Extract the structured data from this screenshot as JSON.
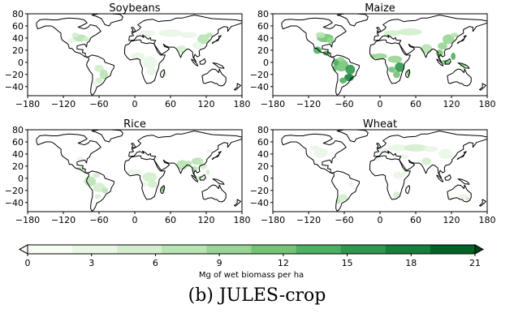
{
  "figure": {
    "caption": "(b) JULES-crop"
  },
  "panels": [
    {
      "title": "Soybeans",
      "crop": "soybeans"
    },
    {
      "title": "Maize",
      "crop": "maize"
    },
    {
      "title": "Rice",
      "crop": "rice"
    },
    {
      "title": "Wheat",
      "crop": "wheat"
    }
  ],
  "axes": {
    "x_ticks": [
      -180,
      -120,
      -60,
      0,
      60,
      120,
      180
    ],
    "y_ticks": [
      80,
      60,
      40,
      20,
      0,
      -20,
      -40
    ],
    "xlim": [
      -180,
      180
    ],
    "ylim": [
      -55,
      80
    ]
  },
  "colorbar": {
    "label": "Mg of wet biomass per ha",
    "ticks": [
      0,
      3,
      6,
      9,
      12,
      15,
      18,
      21
    ],
    "min": 0,
    "max": 21,
    "extend": "max",
    "colors": [
      "#f7fcf5",
      "#e9f6e5",
      "#d3eecd",
      "#b8e3b2",
      "#98d594",
      "#74c476",
      "#4bb062",
      "#2f974e",
      "#157f3b",
      "#006227",
      "#00441b"
    ]
  },
  "styles": {
    "land": "#ffffff",
    "coastline": "#000000"
  }
}
